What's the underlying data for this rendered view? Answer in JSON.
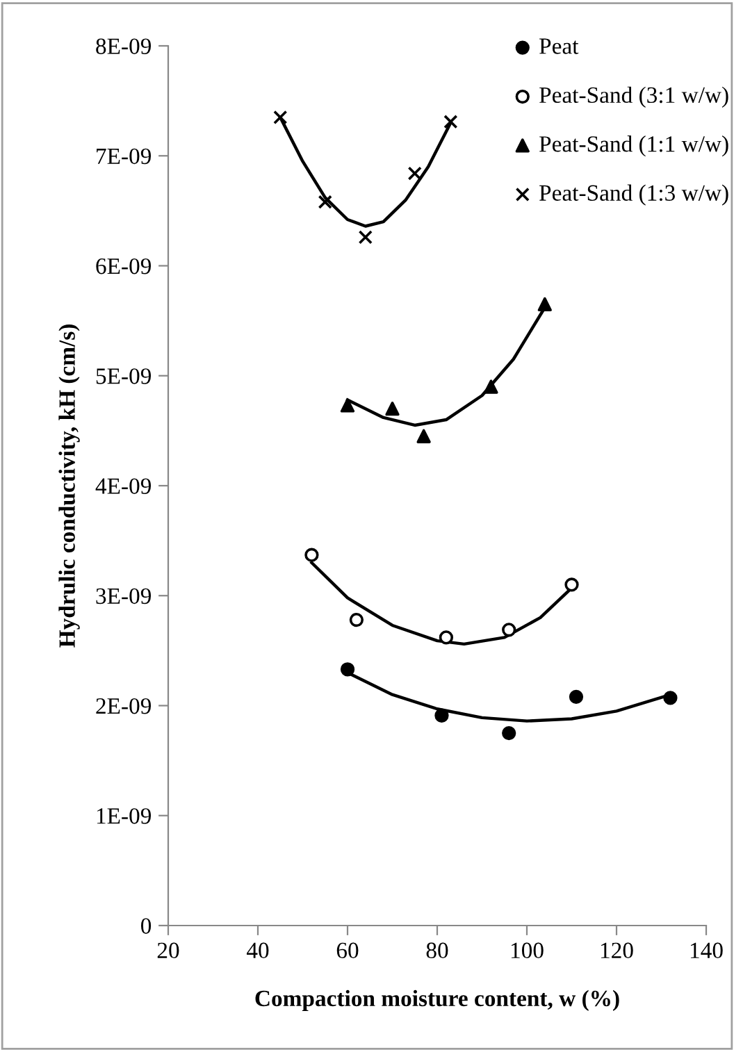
{
  "chart_data": {
    "type": "scatter",
    "xlabel": "Compaction moisture content, w (%)",
    "ylabel": "Hydrulic conductivity, kH (cm/s)",
    "xlim": [
      20,
      140
    ],
    "xticks": [
      20,
      40,
      60,
      80,
      100,
      120,
      140
    ],
    "ylim": [
      0,
      8e-09
    ],
    "yticks": [
      0,
      {
        "value": 1e-09,
        "label": "1E-09"
      },
      {
        "value": 2e-09,
        "label": "2E-09"
      },
      {
        "value": 3e-09,
        "label": "3E-09"
      },
      {
        "value": 4e-09,
        "label": "4E-09"
      },
      {
        "value": 5e-09,
        "label": "5E-09"
      },
      {
        "value": 6e-09,
        "label": "6E-09"
      },
      {
        "value": 7e-09,
        "label": "7E-09"
      },
      {
        "value": 8e-09,
        "label": "8E-09"
      }
    ],
    "grid": false,
    "legend": "top right",
    "series": [
      {
        "name": "Peat",
        "color": "#000000",
        "marker": "circle",
        "x": [
          60,
          81,
          96,
          111,
          132
        ],
        "values": [
          2.33e-09,
          1.91e-09,
          1.75e-09,
          2.08e-09,
          2.07e-09
        ]
      },
      {
        "name": "Peat-Sand (3:1 w/w)",
        "color": "#000000",
        "marker": "circle",
        "x": [
          52,
          62,
          82,
          96,
          110
        ],
        "values": [
          3.37e-09,
          2.78e-09,
          2.62e-09,
          2.69e-09,
          3.1e-09
        ]
      },
      {
        "name": "Peat-Sand (1:1 w/w)",
        "color": "#000000",
        "marker": "triangle",
        "x": [
          60,
          70,
          77,
          92,
          104
        ],
        "values": [
          4.73e-09,
          4.7e-09,
          4.45e-09,
          4.9e-09,
          5.65e-09
        ]
      },
      {
        "name": "Peat-Sand (1:3 w/w)",
        "color": "#000000",
        "marker": "cross",
        "x": [
          45,
          55,
          64,
          75,
          83
        ],
        "values": [
          7.35e-09,
          6.58e-09,
          6.26e-09,
          6.84e-09,
          7.31e-09
        ]
      },
      {
        "type": "line",
        "color": "#000000",
        "x": [
          60,
          70,
          80,
          90,
          100,
          110,
          120,
          132
        ],
        "values": [
          2.3e-09,
          2.1e-09,
          1.97e-09,
          1.89e-09,
          1.86e-09,
          1.88e-09,
          1.95e-09,
          2.1e-09
        ]
      },
      {
        "type": "line",
        "color": "#000000",
        "x": [
          52,
          60,
          70,
          80,
          86,
          95,
          103,
          110
        ],
        "values": [
          3.3e-09,
          2.98e-09,
          2.73e-09,
          2.59e-09,
          2.56e-09,
          2.62e-09,
          2.8e-09,
          3.07e-09
        ]
      },
      {
        "type": "line",
        "color": "#000000",
        "x": [
          60,
          68,
          75,
          82,
          90,
          97,
          104
        ],
        "values": [
          4.78e-09,
          4.62e-09,
          4.55e-09,
          4.6e-09,
          4.82e-09,
          5.15e-09,
          5.62e-09
        ]
      },
      {
        "type": "line",
        "color": "#000000",
        "x": [
          45,
          50,
          55,
          60,
          64,
          68,
          73,
          78,
          83
        ],
        "values": [
          7.35e-09,
          6.95e-09,
          6.62e-09,
          6.42e-09,
          6.36e-09,
          6.4e-09,
          6.6e-09,
          6.9e-09,
          7.3e-09
        ]
      }
    ]
  }
}
